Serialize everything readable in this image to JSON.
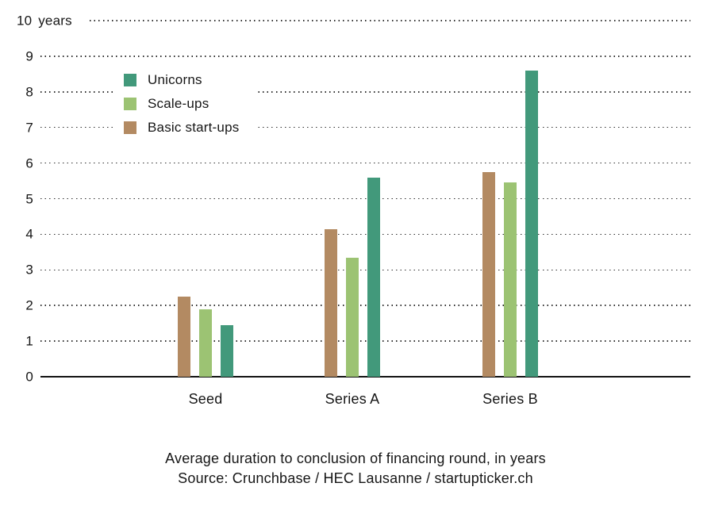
{
  "chart_data": {
    "type": "bar",
    "title": "Average duration to conclusion of financing round, in years",
    "source": "Source: Crunchbase / HEC Lausanne / startupticker.ch",
    "categories": [
      "Seed",
      "Series A",
      "Series B"
    ],
    "series": [
      {
        "name": "Unicorns",
        "color": "#42997B",
        "values": [
          1.45,
          5.6,
          8.6
        ]
      },
      {
        "name": "Scale-ups",
        "color": "#9CC373",
        "values": [
          1.9,
          3.35,
          5.45
        ]
      },
      {
        "name": "Basic start-ups",
        "color": "#B38A62",
        "values": [
          2.25,
          4.15,
          5.75
        ]
      }
    ],
    "bar_display_order": [
      "Basic start-ups",
      "Scale-ups",
      "Unicorns"
    ],
    "ylim": [
      0,
      10
    ],
    "ytick_step": 1,
    "y_top_tick_label": "10 years",
    "ylabel": "",
    "xlabel": "",
    "grid": "horizontal-dotted",
    "legend_position": "inside-top-left"
  }
}
